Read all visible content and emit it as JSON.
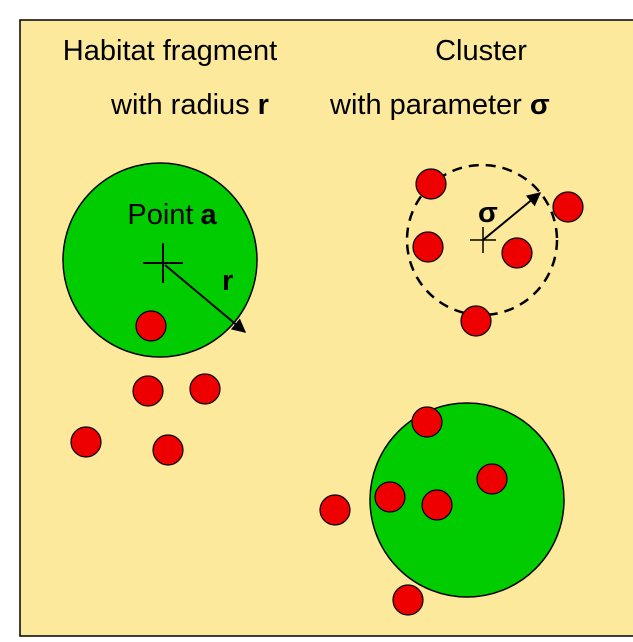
{
  "headings": {
    "fragment": {
      "line1": "Habitat fragment",
      "line2": "with radius",
      "symbol": "r"
    },
    "cluster": {
      "line1": "Cluster",
      "line2": "with parameter",
      "symbol": "σ"
    }
  },
  "labels": {
    "point": "Point",
    "point_symbol": "a",
    "radius": "r",
    "sigma": "σ"
  }
}
